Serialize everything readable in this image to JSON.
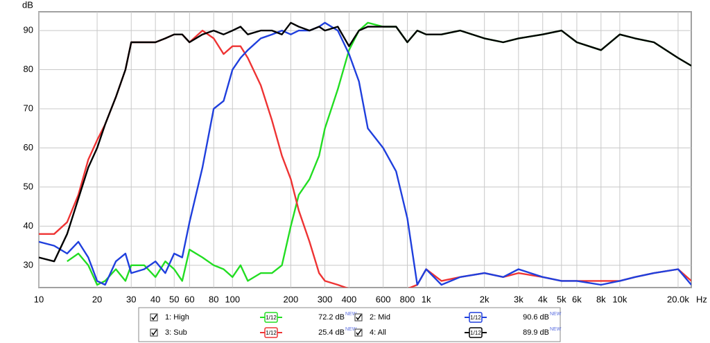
{
  "chart_data": {
    "type": "line",
    "y_label": "dB",
    "x_label": "Hz",
    "xscale": "log",
    "grid": true,
    "x": [
      10,
      12,
      14,
      16,
      18,
      20,
      22,
      25,
      28,
      30,
      35,
      40,
      45,
      50,
      55,
      60,
      70,
      80,
      90,
      100,
      110,
      120,
      140,
      160,
      180,
      200,
      220,
      250,
      280,
      300,
      350,
      400,
      450,
      500,
      600,
      700,
      800,
      900,
      1000,
      1200,
      1500,
      2000,
      2500,
      3000,
      4000,
      5000,
      6000,
      8000,
      10000,
      12000,
      15000,
      20000,
      23400
    ],
    "xlim": [
      10,
      23400
    ],
    "ylim": [
      24.3,
      94.8
    ],
    "xticks": [
      10,
      20,
      30,
      40,
      50,
      60,
      80,
      100,
      200,
      300,
      400,
      600,
      800,
      {
        "value": 1000,
        "label": "1k"
      },
      {
        "value": 2000,
        "label": "2k"
      },
      {
        "value": 3000,
        "label": "3k"
      },
      {
        "value": 4000,
        "label": "4k"
      },
      {
        "value": 5000,
        "label": "5k"
      },
      {
        "value": 6000,
        "label": "6k"
      },
      {
        "value": 8000,
        "label": "8k"
      },
      {
        "value": 10000,
        "label": "10k"
      },
      {
        "value": 20000,
        "label": "20.0k"
      }
    ],
    "yticks": [
      30,
      40,
      50,
      60,
      70,
      80,
      90
    ],
    "series": [
      {
        "name": "1: High",
        "color": "#22dd22",
        "smoothing": "1/12",
        "level": "72.2 dB",
        "badge": "NEW",
        "values": [
          null,
          null,
          31,
          33,
          30,
          25,
          26,
          29,
          26,
          30,
          30,
          27,
          31,
          29,
          26,
          34,
          32,
          30,
          29,
          27,
          30,
          26,
          28,
          28,
          30,
          40,
          48,
          52,
          58,
          65,
          75,
          85,
          90,
          92,
          91,
          91,
          87,
          90,
          89,
          89,
          90,
          88,
          87,
          88,
          89,
          90,
          87,
          85,
          89,
          88,
          87,
          83,
          81
        ]
      },
      {
        "name": "3: Sub",
        "color": "#ee3333",
        "smoothing": "1/12",
        "level": "25.4 dB",
        "badge": "NEW",
        "values": [
          38,
          38,
          41,
          48,
          57,
          62,
          66,
          73,
          80,
          87,
          87,
          87,
          88,
          89,
          89,
          87,
          90,
          88,
          84,
          86,
          86,
          83,
          76,
          67,
          58,
          52,
          44,
          36,
          28,
          26,
          25,
          24,
          null,
          null,
          24,
          null,
          24,
          25,
          29,
          26,
          27,
          28,
          27,
          28,
          27,
          26,
          26,
          26,
          26,
          27,
          28,
          29,
          26
        ]
      },
      {
        "name": "2: Mid",
        "color": "#1f3fdd",
        "smoothing": "1/12",
        "level": "90.6 dB",
        "badge": "NEW",
        "values": [
          36,
          35,
          33,
          36,
          32,
          26,
          25,
          31,
          33,
          28,
          29,
          31,
          28,
          33,
          32,
          41,
          55,
          70,
          72,
          80,
          83,
          85,
          88,
          89,
          90,
          89,
          90,
          90,
          91,
          92,
          90,
          84,
          77,
          65,
          60,
          54,
          42,
          25,
          29,
          25,
          27,
          28,
          27,
          29,
          27,
          26,
          26,
          25,
          26,
          27,
          28,
          29,
          25
        ]
      },
      {
        "name": "4: All",
        "color": "#000000",
        "smoothing": "1/12",
        "level": "89.9 dB",
        "badge": "NEW",
        "values": [
          32,
          31,
          38,
          47,
          55,
          60,
          66,
          73,
          80,
          87,
          87,
          87,
          88,
          89,
          89,
          87,
          89,
          90,
          89,
          90,
          91,
          89,
          90,
          90,
          89,
          92,
          91,
          90,
          91,
          90,
          91,
          86,
          90,
          91,
          91,
          91,
          87,
          90,
          89,
          89,
          90,
          88,
          87,
          88,
          89,
          90,
          87,
          85,
          89,
          88,
          87,
          83,
          81
        ]
      }
    ]
  }
}
